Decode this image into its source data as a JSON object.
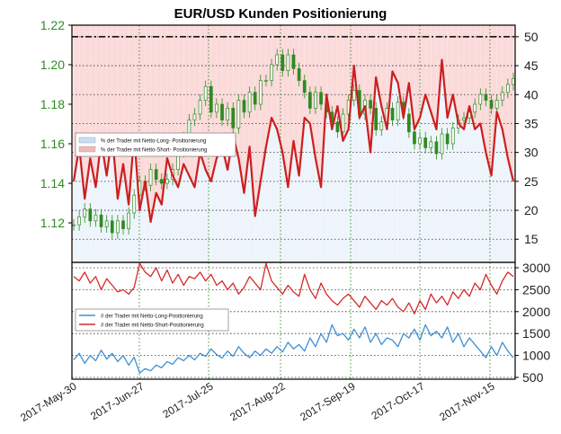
{
  "chart_data": [
    {
      "type": "line",
      "title": "EUR/USD Kunden Positionierung",
      "x_tick_labels": [
        "2017-May-30",
        "2017-Jun-27",
        "2017-Jul-25",
        "2017-Aug-22",
        "2017-Sep-19",
        "2017-Oct-17",
        "2017-Nov-15"
      ],
      "left_axis": {
        "ticks": [
          "1.22",
          "1.20",
          "1.18",
          "1.16",
          "1.14",
          "1.12"
        ],
        "range": [
          1.1,
          1.22
        ],
        "color": "#2e8b22"
      },
      "right_axis": {
        "ticks": [
          "50",
          "45",
          "40",
          "35",
          "30",
          "25",
          "20",
          "15"
        ],
        "range": [
          11,
          52
        ]
      },
      "reference_line": {
        "value": 50,
        "style": "dash-dot",
        "color": "#000000"
      },
      "legend": {
        "placement": "left",
        "entries": [
          {
            "label": "% der Trader mit Netto-Long- Positionierung",
            "color": "#c9def5"
          },
          {
            "label": "% der Trader mit Netto-Short- Positionierung",
            "color": "#f4b8b8"
          }
        ]
      },
      "series": [
        {
          "name": "% der Trader mit Netto-Short- Positionierung",
          "color": "#cc1f1f",
          "values": [
            25,
            31,
            22,
            29,
            24,
            32,
            26,
            33,
            22,
            28,
            21,
            33,
            20,
            25,
            18,
            23,
            21,
            29,
            26,
            24,
            28,
            26,
            24,
            30,
            27,
            25,
            29,
            31,
            27,
            33,
            29,
            23,
            31,
            19,
            25,
            31,
            36,
            34,
            30,
            24,
            32,
            26,
            36,
            35,
            29,
            24,
            40,
            34,
            38,
            32,
            34,
            45,
            36,
            38,
            30,
            43,
            38,
            34,
            44,
            42,
            36,
            42,
            34,
            36,
            40,
            37,
            34,
            46,
            36,
            40,
            35,
            34,
            38,
            34,
            35,
            30,
            26,
            37,
            34,
            29,
            25
          ]
        },
        {
          "name": "EUR/USD",
          "color": "#2e8b22",
          "values": [
            1.119,
            1.123,
            1.127,
            1.121,
            1.124,
            1.118,
            1.121,
            1.115,
            1.121,
            1.117,
            1.125,
            1.134,
            1.141,
            1.139,
            1.147,
            1.142,
            1.14,
            1.142,
            1.147,
            1.156,
            1.163,
            1.172,
            1.175,
            1.182,
            1.189,
            1.176,
            1.18,
            1.172,
            1.178,
            1.168,
            1.182,
            1.176,
            1.186,
            1.18,
            1.192,
            1.192,
            1.2,
            1.205,
            1.197,
            1.205,
            1.198,
            1.192,
            1.186,
            1.178,
            1.186,
            1.18,
            1.176,
            1.171,
            1.166,
            1.175,
            1.182,
            1.187,
            1.175,
            1.182,
            1.178,
            1.167,
            1.171,
            1.178,
            1.172,
            1.181,
            1.175,
            1.166,
            1.16,
            1.163,
            1.158,
            1.161,
            1.155,
            1.165,
            1.16,
            1.168,
            1.172,
            1.173,
            1.176,
            1.18,
            1.185,
            1.182,
            1.178,
            1.182,
            1.186,
            1.19,
            1.193
          ]
        }
      ]
    },
    {
      "type": "line",
      "right_axis": {
        "ticks": [
          "3000",
          "2500",
          "2000",
          "1500",
          "1000",
          "500"
        ],
        "range": [
          500,
          3000
        ]
      },
      "legend": {
        "placement": "left",
        "entries": [
          {
            "label": "# der Trader mit Netto-Long-Positionierung",
            "color": "#3d8fd6"
          },
          {
            "label": "# der Trader mit Netto-Short-Positionierung",
            "color": "#d62a2a"
          }
        ]
      },
      "series": [
        {
          "name": "# der Trader mit Netto-Long-Positionierung",
          "color": "#3d8fd6",
          "values": [
            900,
            1050,
            820,
            1000,
            880,
            1120,
            920,
            1050,
            860,
            1000,
            780,
            960,
            600,
            700,
            650,
            780,
            720,
            860,
            800,
            950,
            880,
            1000,
            900,
            1050,
            980,
            1150,
            1020,
            940,
            1100,
            980,
            1200,
            1050,
            950,
            1100,
            1000,
            1150,
            1050,
            1200,
            1080,
            1300,
            1150,
            1250,
            1100,
            1400,
            1200,
            1500,
            1300,
            1700,
            1450,
            1500,
            1350,
            1600,
            1400,
            1650,
            1300,
            1500,
            1250,
            1400,
            1350,
            1200,
            1500,
            1400,
            1600,
            1350,
            1700,
            1450,
            1550,
            1400,
            1650,
            1300,
            1500,
            1200,
            1400,
            1250,
            1100,
            950,
            1200,
            1000,
            1300,
            1100,
            950
          ]
        },
        {
          "name": "# der Trader mit Netto-Short-Positionierung",
          "color": "#d62a2a",
          "values": [
            2800,
            2700,
            2900,
            2650,
            2800,
            2500,
            2750,
            2600,
            2450,
            2500,
            2400,
            2550,
            3100,
            2900,
            2800,
            3000,
            2700,
            2950,
            2650,
            2850,
            2600,
            2800,
            2750,
            2900,
            2700,
            2850,
            2600,
            2700,
            2500,
            2650,
            2400,
            2550,
            2800,
            2650,
            2500,
            3100,
            2700,
            2550,
            2400,
            2600,
            2450,
            2350,
            2850,
            2500,
            2300,
            2650,
            2400,
            2250,
            2150,
            2300,
            2400,
            2250,
            2100,
            2350,
            2200,
            2050,
            2250,
            2150,
            2300,
            2100,
            2000,
            2200,
            1950,
            2250,
            2050,
            2400,
            2200,
            2350,
            2150,
            2450,
            2300,
            2500,
            2350,
            2650,
            2500,
            2850,
            2600,
            2400,
            2700,
            2900,
            2800
          ]
        }
      ]
    }
  ]
}
